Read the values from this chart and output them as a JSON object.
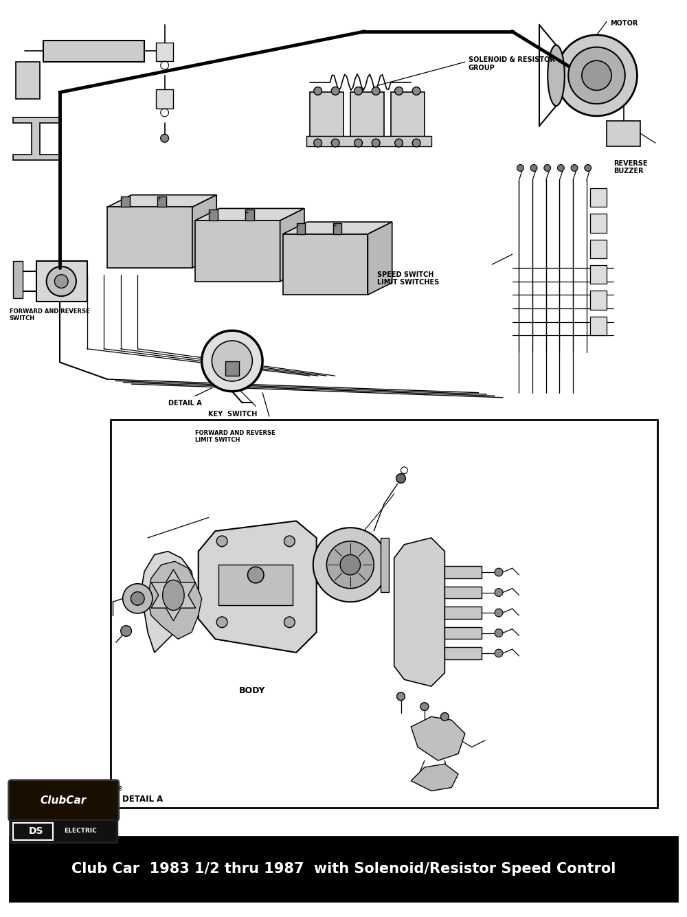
{
  "title": "Club Car  1983 1/2 thru 1987  with Solenoid/Resistor Speed Control",
  "title_bg": "#000000",
  "title_color": "#ffffff",
  "title_fontsize": 15,
  "bg_color": "#ffffff",
  "fig_width": 10.0,
  "fig_height": 13.35,
  "upper_diagram": {
    "solenoid_label": "SOLENOID & RESISTOR\nGROUP",
    "motor_label": "MOTOR",
    "reverse_buzzer_label": "REVERSE\nBUZZER",
    "forward_reverse_switch_label": "FORWARD AND REVERSE\nSWITCH",
    "detail_a_label": "DETAIL A",
    "key_switch_label": "KEY  SWITCH",
    "forward_reverse_limit_label": "FORWARD AND REVERSE\nLIMIT SWITCH",
    "speed_switch_label": "SPEED SWITCH\nLIMIT SWITCHES"
  },
  "lower_diagram": {
    "body_label": "BODY",
    "detail_a_label": "DETAIL A"
  },
  "logos": {
    "clubcar": "ClubCar",
    "ds_electric": "DS  ELECTRIC"
  },
  "label_fontsize": 7,
  "label_fontsize_sm": 6
}
